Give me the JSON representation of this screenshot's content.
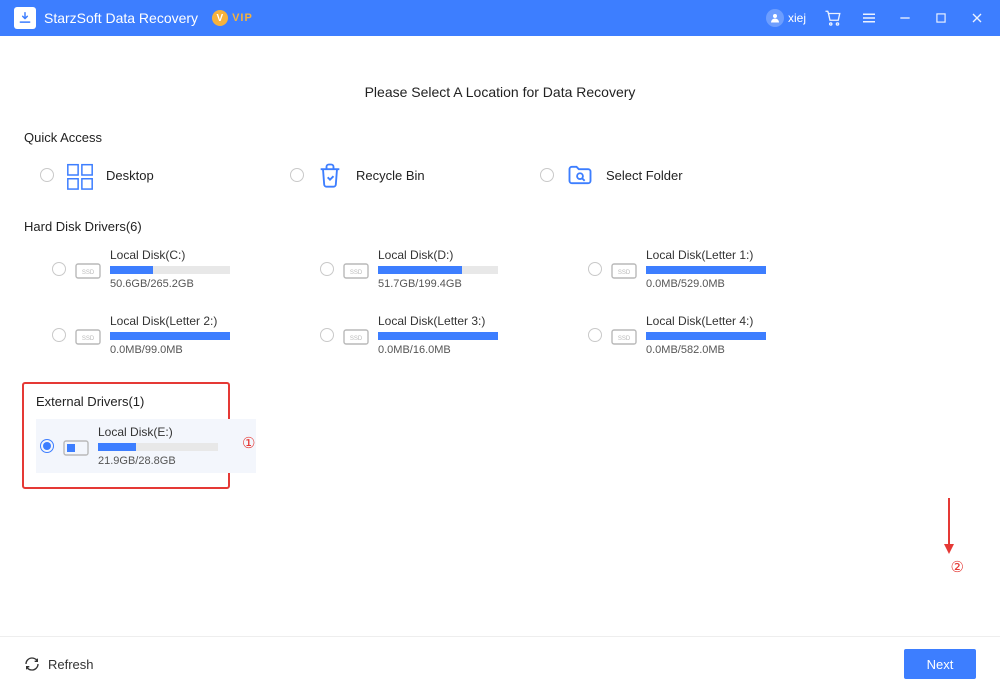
{
  "colors": {
    "brand": "#3d7eff",
    "vip": "#f6b23c",
    "annotation": "#e53935",
    "bar_bg": "#e8e8e8",
    "selected_bg": "#f3f6fc"
  },
  "titlebar": {
    "app_name": "StarzSoft Data Recovery",
    "vip_label": "VIP",
    "username": "xiej"
  },
  "heading": "Please Select A Location for Data Recovery",
  "quick_access": {
    "title": "Quick Access",
    "items": [
      {
        "label": "Desktop"
      },
      {
        "label": "Recycle Bin"
      },
      {
        "label": "Select Folder"
      }
    ]
  },
  "hard_disks": {
    "title": "Hard Disk Drivers(6)",
    "items": [
      {
        "name": "Local Disk(C:)",
        "size": "50.6GB/265.2GB",
        "fill_pct": 36
      },
      {
        "name": "Local Disk(D:)",
        "size": "51.7GB/199.4GB",
        "fill_pct": 70
      },
      {
        "name": "Local Disk(Letter 1:)",
        "size": "0.0MB/529.0MB",
        "fill_pct": 100
      },
      {
        "name": "Local Disk(Letter 2:)",
        "size": "0.0MB/99.0MB",
        "fill_pct": 100
      },
      {
        "name": "Local Disk(Letter 3:)",
        "size": "0.0MB/16.0MB",
        "fill_pct": 100
      },
      {
        "name": "Local Disk(Letter 4:)",
        "size": "0.0MB/582.0MB",
        "fill_pct": 100
      }
    ]
  },
  "external": {
    "title": "External Drivers(1)",
    "items": [
      {
        "name": "Local Disk(E:)",
        "size": "21.9GB/28.8GB",
        "fill_pct": 32,
        "selected": true
      }
    ]
  },
  "annotations": {
    "one": "①",
    "two": "②"
  },
  "footer": {
    "refresh": "Refresh",
    "next": "Next"
  }
}
